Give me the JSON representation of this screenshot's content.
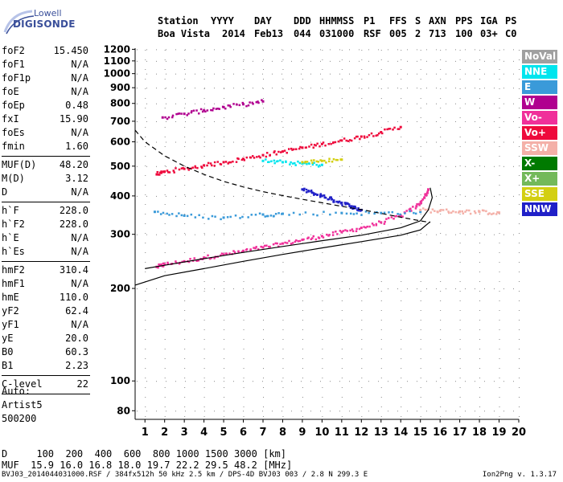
{
  "logo": {
    "top": "Lowell",
    "bottom": "DIGISONDE"
  },
  "header": {
    "labels": [
      "Station",
      "YYYY",
      "DAY",
      "DDD",
      "HHMMSS",
      "P1",
      "FFS",
      "S",
      "AXN",
      "PPS",
      "IGA",
      "PS"
    ],
    "values": [
      "Boa Vista",
      "2014",
      "Feb13",
      "044",
      "031000",
      "RSF",
      "005",
      "2",
      "713",
      "100",
      "03+",
      "C0"
    ]
  },
  "params_groups": [
    [
      [
        "foF2",
        "15.450"
      ],
      [
        "foF1",
        "N/A"
      ],
      [
        "foF1p",
        "N/A"
      ],
      [
        "foE",
        "N/A"
      ],
      [
        "foEp",
        "0.48"
      ],
      [
        "fxI",
        "15.90"
      ],
      [
        "foEs",
        "N/A"
      ],
      [
        "fmin",
        "1.60"
      ]
    ],
    [
      [
        "MUF(D)",
        "48.20"
      ],
      [
        "M(D)",
        "3.12"
      ],
      [
        "D",
        "N/A"
      ]
    ],
    [
      [
        "h`F",
        "228.0"
      ],
      [
        "h`F2",
        "228.0"
      ],
      [
        "h`E",
        "N/A"
      ],
      [
        "h`Es",
        "N/A"
      ]
    ],
    [
      [
        "hmF2",
        "310.4"
      ],
      [
        "hmF1",
        "N/A"
      ],
      [
        "hmE",
        "110.0"
      ],
      [
        "yF2",
        "62.4"
      ],
      [
        "yF1",
        "N/A"
      ],
      [
        "yE",
        "20.0"
      ],
      [
        "B0",
        "60.3"
      ],
      [
        "B1",
        "2.23"
      ]
    ],
    [
      [
        "C-level",
        "22"
      ]
    ]
  ],
  "auto_block": [
    "Auto:",
    "Artist5",
    "500200"
  ],
  "legend": [
    {
      "label": "NoVal",
      "color": "#a0a0a0"
    },
    {
      "label": "NNE",
      "color": "#00e5ee"
    },
    {
      "label": "E",
      "color": "#3a9ad9"
    },
    {
      "label": "W",
      "color": "#b0008f"
    },
    {
      "label": "Vo-",
      "color": "#f0309a"
    },
    {
      "label": "Vo+",
      "color": "#ee0a3c"
    },
    {
      "label": "SSW",
      "color": "#f4b0a8"
    },
    {
      "label": "X-",
      "color": "#007a00"
    },
    {
      "label": "X+",
      "color": "#73b95a"
    },
    {
      "label": "SSE",
      "color": "#d3cf12"
    },
    {
      "label": "NNW",
      "color": "#2020c8"
    }
  ],
  "footer": {
    "d_line": "D     100  200  400  600  800 1000 1500 3000 [km]",
    "muf_line": "MUF  15.9 16.0 16.8 18.0 19.7 22.2 29.5 48.2 [MHz]",
    "file_line": "BVJ03_2014044031000.RSF / 384fx512h 50 kHz 2.5 km / DPS-4D BVJ03 003 / 2.8 N 299.3 E",
    "version": "Ion2Png v. 1.3.17"
  },
  "chart_data": {
    "type": "scatter",
    "xlim": [
      0.5,
      20
    ],
    "ylim": [
      75,
      1210
    ],
    "x_ticks": [
      1,
      2,
      3,
      4,
      5,
      6,
      7,
      8,
      9,
      10,
      11,
      12,
      13,
      14,
      15,
      16,
      17,
      18,
      19,
      20
    ],
    "y_ticks": [
      80,
      100,
      200,
      300,
      400,
      500,
      600,
      700,
      800,
      900,
      1000,
      1100,
      1200
    ],
    "y_scale": "log",
    "grid": true,
    "series": [
      {
        "name": "Vo-",
        "values": [
          [
            1.6,
            235
          ],
          [
            2,
            240
          ],
          [
            3,
            245
          ],
          [
            4,
            252
          ],
          [
            5,
            258
          ],
          [
            6,
            265
          ],
          [
            7,
            272
          ],
          [
            8,
            280
          ],
          [
            9,
            288
          ],
          [
            10,
            296
          ],
          [
            11,
            305
          ],
          [
            12,
            315
          ],
          [
            13,
            328
          ],
          [
            14,
            345
          ],
          [
            14.8,
            370
          ],
          [
            15.2,
            395
          ],
          [
            15.4,
            420
          ]
        ]
      },
      {
        "name": "Vo+",
        "values": [
          [
            1.6,
            470
          ],
          [
            2,
            480
          ],
          [
            3,
            490
          ],
          [
            4,
            503
          ],
          [
            5,
            515
          ],
          [
            6,
            528
          ],
          [
            7,
            543
          ],
          [
            8,
            558
          ],
          [
            9,
            574
          ],
          [
            10,
            590
          ],
          [
            11,
            606
          ],
          [
            12,
            624
          ],
          [
            13,
            645
          ],
          [
            14,
            670
          ]
        ]
      },
      {
        "name": "W",
        "values": [
          [
            1.9,
            720
          ],
          [
            3,
            740
          ],
          [
            4,
            760
          ],
          [
            5,
            778
          ],
          [
            6,
            795
          ],
          [
            7,
            812
          ]
        ]
      },
      {
        "name": "NNW",
        "values": [
          [
            9,
            420
          ],
          [
            9.5,
            410
          ],
          [
            10,
            400
          ],
          [
            10.5,
            390
          ],
          [
            11,
            380
          ],
          [
            11.5,
            370
          ],
          [
            12,
            360
          ]
        ]
      },
      {
        "name": "E",
        "values": [
          [
            1.5,
            355
          ],
          [
            3,
            345
          ],
          [
            5,
            340
          ],
          [
            7,
            348
          ],
          [
            8,
            350
          ],
          [
            11,
            352
          ],
          [
            13,
            352
          ],
          [
            15,
            355
          ]
        ]
      },
      {
        "name": "SSW",
        "values": [
          [
            15,
            360
          ],
          [
            16,
            358
          ],
          [
            17,
            356
          ],
          [
            18,
            355
          ],
          [
            19,
            353
          ]
        ]
      },
      {
        "name": "NNE",
        "values": [
          [
            7,
            520
          ],
          [
            8,
            515
          ],
          [
            9,
            510
          ],
          [
            10,
            505
          ]
        ]
      },
      {
        "name": "SSE",
        "values": [
          [
            9,
            515
          ],
          [
            10,
            520
          ],
          [
            11,
            525
          ]
        ]
      }
    ],
    "curves": [
      {
        "style": "solid",
        "values": [
          [
            0.5,
            205
          ],
          [
            2,
            220
          ],
          [
            4,
            232
          ],
          [
            6,
            245
          ],
          [
            8,
            258
          ],
          [
            10,
            271
          ],
          [
            12,
            284
          ],
          [
            14,
            298
          ],
          [
            15,
            310
          ],
          [
            15.5,
            330
          ]
        ]
      },
      {
        "style": "solid",
        "values": [
          [
            1,
            232
          ],
          [
            2,
            238
          ],
          [
            4,
            250
          ],
          [
            6,
            262
          ],
          [
            8,
            274
          ],
          [
            10,
            286
          ],
          [
            12,
            298
          ],
          [
            14,
            315
          ],
          [
            15,
            332
          ],
          [
            15.4,
            360
          ],
          [
            15.6,
            395
          ],
          [
            15.5,
            425
          ]
        ]
      },
      {
        "style": "dashed",
        "values": [
          [
            0.5,
            655
          ],
          [
            1,
            600
          ],
          [
            2,
            540
          ],
          [
            3,
            500
          ],
          [
            4,
            470
          ],
          [
            5,
            446
          ],
          [
            6,
            428
          ],
          [
            7,
            413
          ],
          [
            8,
            401
          ],
          [
            9,
            390
          ],
          [
            10,
            380
          ],
          [
            11,
            370
          ],
          [
            12,
            361
          ],
          [
            13,
            351
          ],
          [
            14,
            341
          ],
          [
            15,
            332
          ],
          [
            15.5,
            328
          ]
        ]
      }
    ]
  }
}
